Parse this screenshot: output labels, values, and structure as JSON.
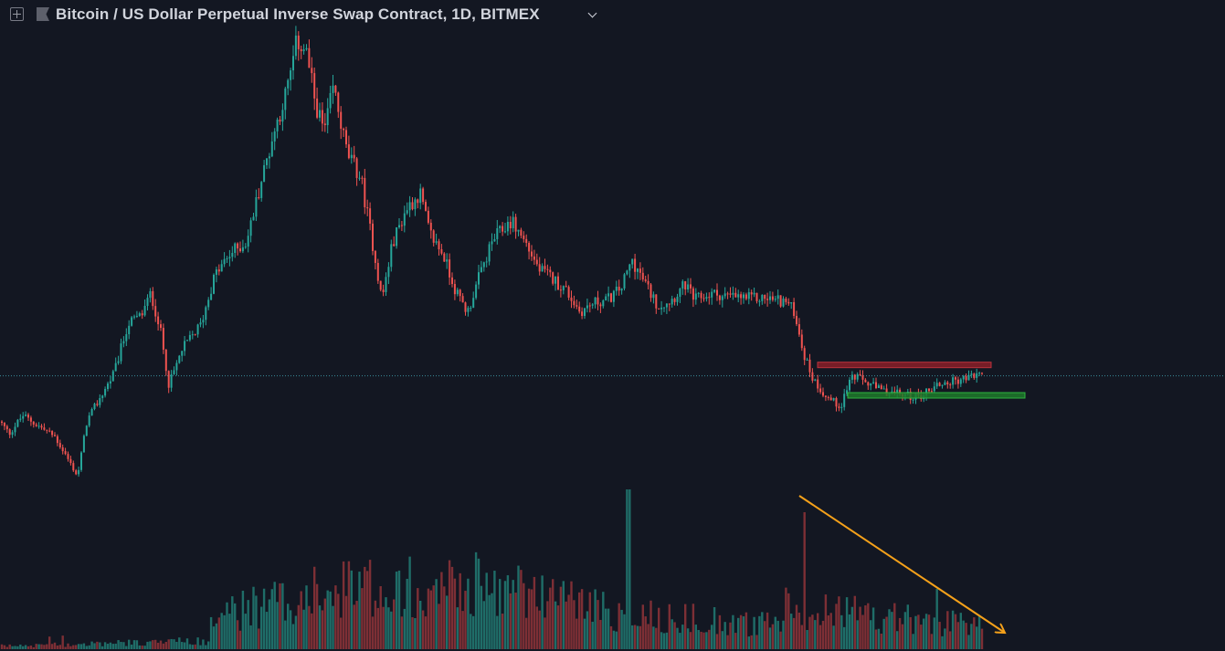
{
  "header": {
    "title": "Bitcoin / US Dollar Perpetual Inverse Swap Contract, 1D, BITMEX",
    "add_icon": "plus-square-icon",
    "flag_icon": "flag-icon",
    "dropdown_icon": "chevron-down-icon"
  },
  "colors": {
    "background": "#131722",
    "up": "#26a69a",
    "down": "#ef5350",
    "up_volume": "#1f6d68",
    "down_volume": "#7d2f35",
    "resistance_zone": "#8a1f28",
    "support_zone": "#1e7a2a",
    "trend_arrow": "#f5a11a",
    "price_line": "#3a8e9b"
  },
  "chart_data": {
    "type": "candlestick",
    "symbol": "XBTUSD",
    "timeframe": "1D",
    "exchange": "BITMEX",
    "price_path_anchors": [
      [
        0,
        7000
      ],
      [
        10,
        6600
      ],
      [
        25,
        7200
      ],
      [
        45,
        6800
      ],
      [
        60,
        6500
      ],
      [
        70,
        6000
      ],
      [
        85,
        5200
      ],
      [
        95,
        7000
      ],
      [
        110,
        7800
      ],
      [
        125,
        8600
      ],
      [
        140,
        10200
      ],
      [
        155,
        10500
      ],
      [
        165,
        11200
      ],
      [
        175,
        10100
      ],
      [
        185,
        8200
      ],
      [
        200,
        9400
      ],
      [
        220,
        10200
      ],
      [
        235,
        11800
      ],
      [
        255,
        12600
      ],
      [
        270,
        12900
      ],
      [
        285,
        14800
      ],
      [
        300,
        16500
      ],
      [
        315,
        18000
      ],
      [
        325,
        19500
      ],
      [
        335,
        19200
      ],
      [
        345,
        17500
      ],
      [
        355,
        16500
      ],
      [
        365,
        18000
      ],
      [
        380,
        15800
      ],
      [
        395,
        15000
      ],
      [
        410,
        12500
      ],
      [
        418,
        11000
      ],
      [
        430,
        12900
      ],
      [
        445,
        14000
      ],
      [
        460,
        14500
      ],
      [
        470,
        13200
      ],
      [
        485,
        12500
      ],
      [
        500,
        11200
      ],
      [
        512,
        10600
      ],
      [
        525,
        11800
      ],
      [
        540,
        13000
      ],
      [
        560,
        13600
      ],
      [
        575,
        12900
      ],
      [
        590,
        12000
      ],
      [
        605,
        11700
      ],
      [
        620,
        11300
      ],
      [
        635,
        10600
      ],
      [
        650,
        10900
      ],
      [
        665,
        11000
      ],
      [
        680,
        11400
      ],
      [
        692,
        12300
      ],
      [
        705,
        11600
      ],
      [
        720,
        10800
      ],
      [
        735,
        11000
      ],
      [
        750,
        11500
      ],
      [
        760,
        11000
      ],
      [
        780,
        11200
      ],
      [
        800,
        11100
      ],
      [
        820,
        11050
      ],
      [
        840,
        11050
      ],
      [
        860,
        10950
      ],
      [
        870,
        10600
      ],
      [
        880,
        9200
      ],
      [
        890,
        8400
      ],
      [
        905,
        7800
      ],
      [
        920,
        7500
      ],
      [
        932,
        8500
      ],
      [
        948,
        8300
      ],
      [
        965,
        8000
      ],
      [
        985,
        7900
      ],
      [
        1005,
        7800
      ],
      [
        1025,
        8200
      ],
      [
        1040,
        8300
      ],
      [
        1055,
        8400
      ],
      [
        1075,
        8600
      ]
    ],
    "current_price_level": 8500,
    "resistance_zone": {
      "from": 8850,
      "to": 8950,
      "x_start": 895,
      "x_end": 1085
    },
    "support_zone": {
      "from": 7850,
      "to": 7950,
      "x_start": 928,
      "x_end": 1122
    },
    "volume_trend": {
      "direction": "down",
      "x_start": 875,
      "x_end": 1100
    }
  }
}
